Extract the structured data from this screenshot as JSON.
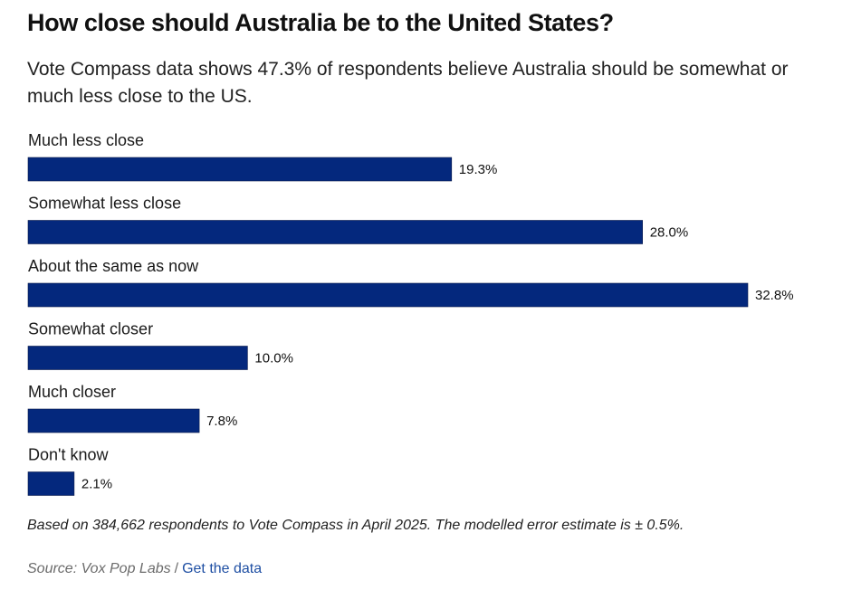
{
  "title": "How close should Australia be to the United States?",
  "subtitle": "Vote Compass data shows 47.3% of respondents believe Australia should be somewhat or much less close to the US.",
  "note": "Based on 384,662 respondents to Vote Compass in April 2025. The modelled error estimate is ± 0.5%.",
  "source": {
    "text": "Source: Vox Pop Labs",
    "separator": "/",
    "link_label": "Get the data"
  },
  "colors": {
    "bar": "#04287d",
    "bar_stroke": "#ffffff",
    "link": "#1f4fa3"
  },
  "chart_data": {
    "type": "bar",
    "orientation": "horizontal",
    "categories": [
      "Much less close",
      "Somewhat less close",
      "About the same as now",
      "Somewhat closer",
      "Much closer",
      "Don't know"
    ],
    "values": [
      19.3,
      28.0,
      32.8,
      10.0,
      7.8,
      2.1
    ],
    "value_labels": [
      "19.3%",
      "28.0%",
      "32.8%",
      "10.0%",
      "7.8%",
      "2.1%"
    ],
    "unit": "%",
    "xlim": [
      0,
      32.8
    ],
    "grid": false,
    "legend": "none"
  }
}
